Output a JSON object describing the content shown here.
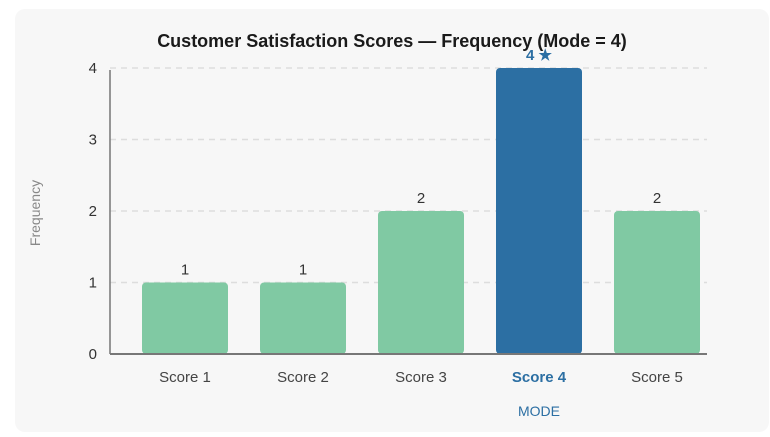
{
  "chart_data": {
    "type": "bar",
    "title": "Customer Satisfaction Scores — Frequency (Mode = 4)",
    "ylabel": "Frequency",
    "xlabel": "",
    "categories": [
      "Score 1",
      "Score 2",
      "Score 3",
      "Score 4",
      "Score 5"
    ],
    "values": [
      1,
      1,
      2,
      4,
      2
    ],
    "data_labels": [
      "1",
      "1",
      "2",
      "4 ★",
      "2"
    ],
    "yticks": [
      "0",
      "1",
      "2",
      "3",
      "4"
    ],
    "ylim": [
      0,
      4
    ],
    "grid": true,
    "mode_index": 3,
    "mode_marker_label": "MODE"
  },
  "colors": {
    "bar": "#80c9a3",
    "bar_mode": "#2c6fa3",
    "grid": "#dddddd",
    "axis": "#777777"
  }
}
